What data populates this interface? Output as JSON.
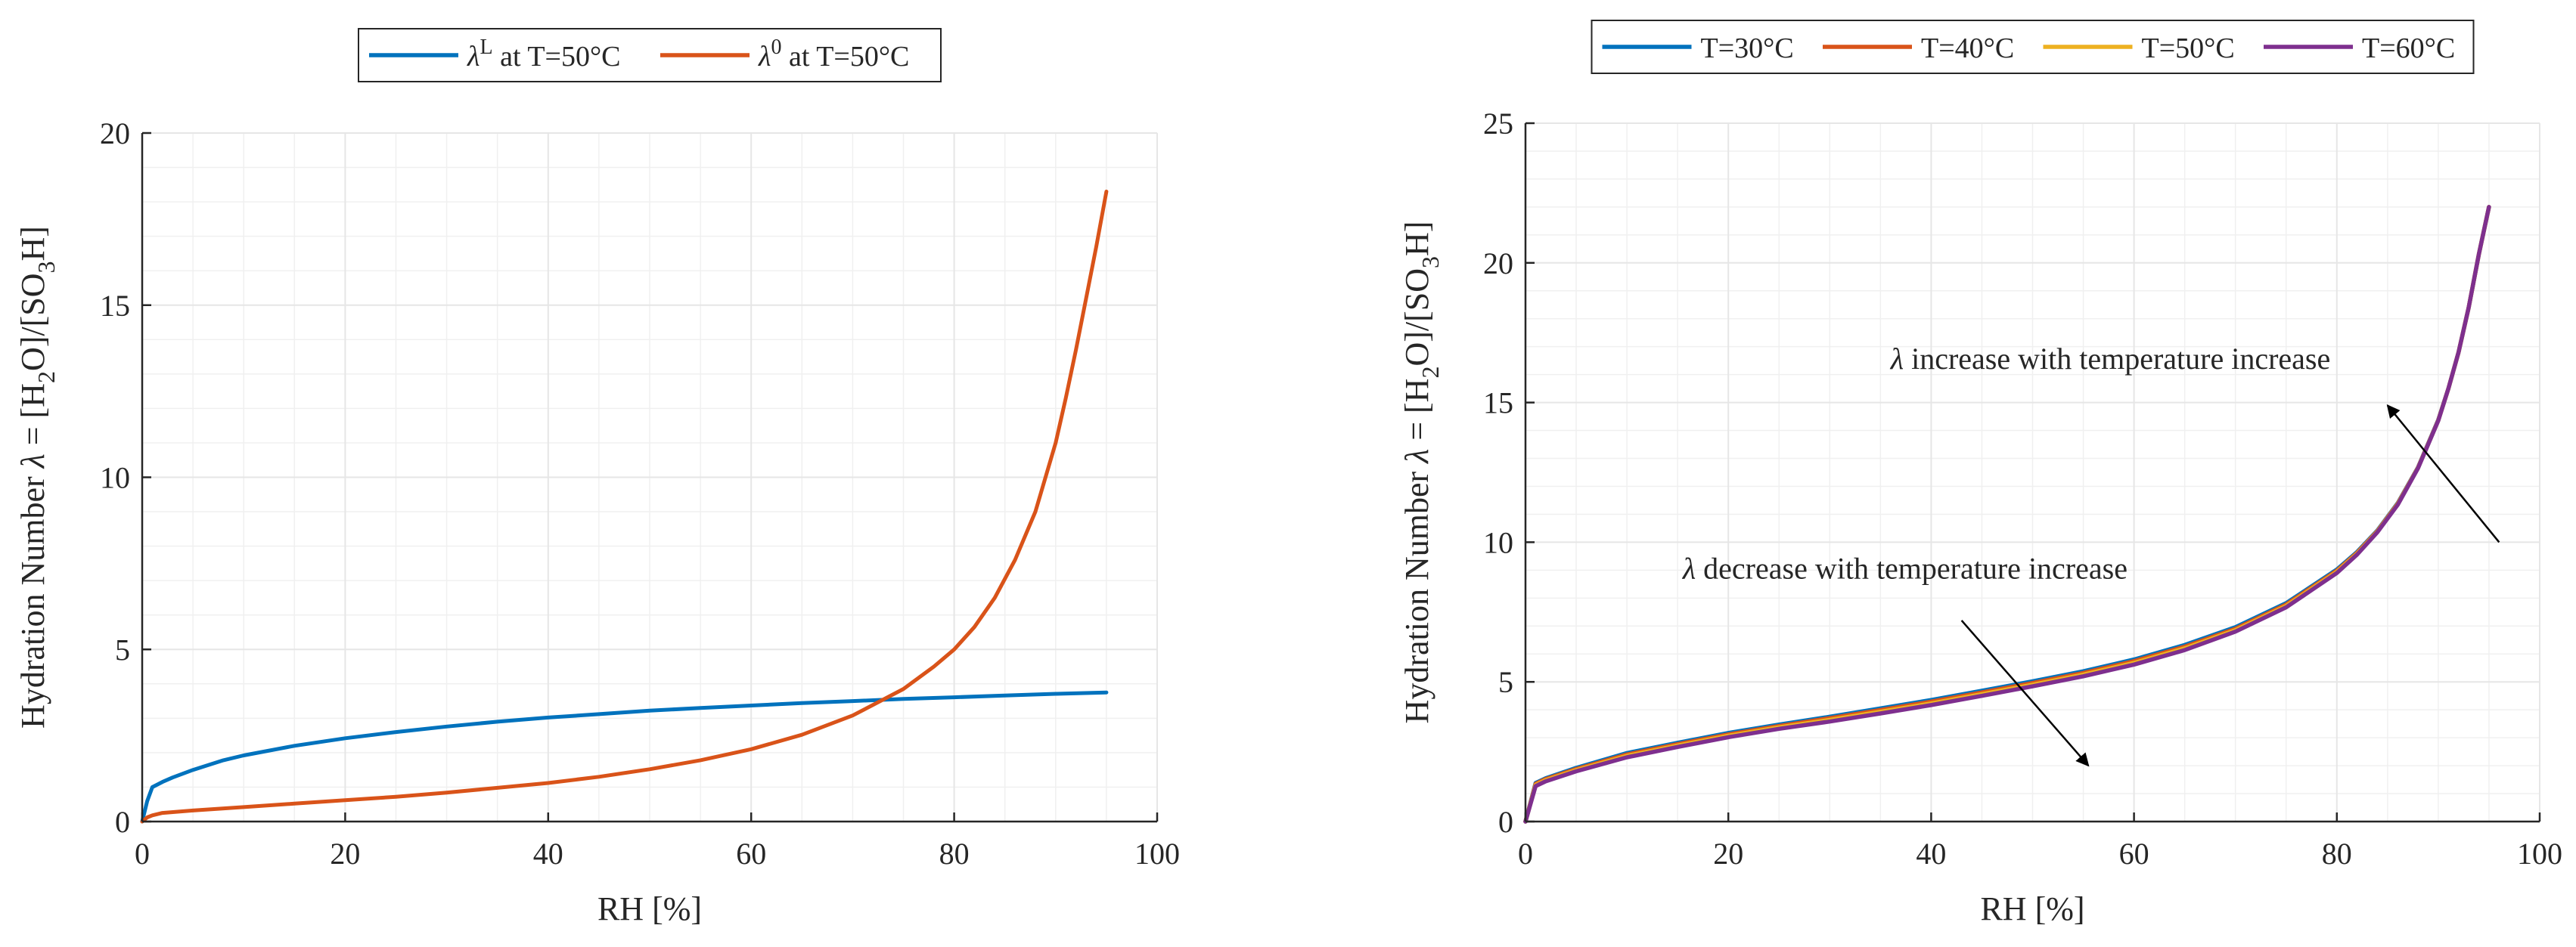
{
  "figure": {
    "background": "#ffffff",
    "grid_color": "#e6e6e6",
    "axis_color": "#262626"
  },
  "chart_data": [
    {
      "type": "line",
      "panel": "left",
      "title": "",
      "xlabel": "RH [%]",
      "ylabel": {
        "prefix": "Hydration Number ",
        "symbol": "λ",
        "eq": " = [H",
        "sub1": "2",
        "mid": "O]/[SO",
        "sub2": "3",
        "suffix": "H]"
      },
      "xlim": [
        0,
        100
      ],
      "ylim": [
        0,
        20
      ],
      "xticks": [
        0,
        20,
        40,
        60,
        80,
        100
      ],
      "yticks": [
        0,
        5,
        10,
        15,
        20
      ],
      "grid": true,
      "minor_grid": true,
      "legend_position": "top-center",
      "series": [
        {
          "name": "λL at T=50°C",
          "legend": {
            "symbol": "λ",
            "sup": "L",
            "rest": " at T=50°C"
          },
          "color": "#0072bd",
          "x": [
            0,
            0.5,
            1,
            2,
            3,
            5,
            8,
            10,
            15,
            20,
            25,
            30,
            35,
            40,
            45,
            50,
            55,
            60,
            65,
            70,
            75,
            80,
            85,
            90,
            95
          ],
          "y": [
            0,
            0.6,
            1.0,
            1.15,
            1.28,
            1.5,
            1.78,
            1.92,
            2.2,
            2.42,
            2.6,
            2.76,
            2.9,
            3.02,
            3.12,
            3.22,
            3.3,
            3.37,
            3.44,
            3.5,
            3.56,
            3.61,
            3.66,
            3.71,
            3.75
          ]
        },
        {
          "name": "λ0 at T=50°C",
          "legend": {
            "symbol": "λ",
            "sup": "0",
            "rest": " at T=50°C"
          },
          "color": "#d95319",
          "x": [
            0,
            0.5,
            1,
            2,
            5,
            10,
            15,
            20,
            25,
            30,
            35,
            40,
            45,
            50,
            55,
            60,
            65,
            70,
            75,
            78,
            80,
            82,
            84,
            86,
            88,
            90,
            91,
            92,
            93,
            94,
            95
          ],
          "y": [
            0,
            0.12,
            0.18,
            0.25,
            0.32,
            0.42,
            0.52,
            0.62,
            0.72,
            0.84,
            0.98,
            1.12,
            1.3,
            1.52,
            1.78,
            2.1,
            2.52,
            3.08,
            3.85,
            4.5,
            5.0,
            5.65,
            6.5,
            7.6,
            9.0,
            11.0,
            12.3,
            13.7,
            15.2,
            16.7,
            18.3
          ]
        }
      ]
    },
    {
      "type": "line",
      "panel": "right",
      "title": "",
      "xlabel": "RH [%]",
      "ylabel": {
        "prefix": "Hydration Number ",
        "symbol": "λ",
        "eq": " = [H",
        "sub1": "2",
        "mid": "O]/[SO",
        "sub2": "3",
        "suffix": "H]"
      },
      "xlim": [
        0,
        100
      ],
      "ylim": [
        0,
        25
      ],
      "xticks": [
        0,
        20,
        40,
        60,
        80,
        100
      ],
      "yticks": [
        0,
        5,
        10,
        15,
        20,
        25
      ],
      "grid": true,
      "minor_grid": true,
      "legend_position": "top-center",
      "series": [
        {
          "name": "T=30°C",
          "color": "#0072bd",
          "x": [
            0,
            1,
            2,
            5,
            10,
            15,
            20,
            25,
            30,
            35,
            40,
            45,
            50,
            55,
            60,
            65,
            70,
            75,
            80,
            82,
            84,
            86,
            88,
            90,
            91,
            92,
            93,
            94,
            95
          ],
          "y": [
            0,
            1.38,
            1.55,
            1.92,
            2.45,
            2.82,
            3.17,
            3.47,
            3.75,
            4.05,
            4.35,
            4.68,
            5.02,
            5.38,
            5.8,
            6.32,
            6.96,
            7.82,
            9.02,
            9.65,
            10.42,
            11.4,
            12.68,
            14.38,
            15.5,
            16.8,
            18.4,
            20.3,
            22.0
          ]
        },
        {
          "name": "T=40°C",
          "color": "#d95319",
          "x": [
            0,
            1,
            2,
            5,
            10,
            15,
            20,
            25,
            30,
            35,
            40,
            45,
            50,
            55,
            60,
            65,
            70,
            75,
            80,
            82,
            84,
            86,
            88,
            90,
            91,
            92,
            93,
            94,
            95
          ],
          "y": [
            0,
            1.35,
            1.52,
            1.88,
            2.4,
            2.77,
            3.12,
            3.42,
            3.7,
            3.99,
            4.29,
            4.62,
            4.96,
            5.32,
            5.74,
            6.26,
            6.9,
            7.77,
            8.98,
            9.62,
            10.4,
            11.38,
            12.67,
            14.37,
            15.5,
            16.8,
            18.4,
            20.3,
            22.0
          ]
        },
        {
          "name": "T=50°C",
          "color": "#edb120",
          "x": [
            0,
            1,
            2,
            5,
            10,
            15,
            20,
            25,
            30,
            35,
            40,
            45,
            50,
            55,
            60,
            65,
            70,
            75,
            80,
            82,
            84,
            86,
            88,
            90,
            91,
            92,
            93,
            94,
            95
          ],
          "y": [
            0,
            1.31,
            1.48,
            1.84,
            2.35,
            2.72,
            3.07,
            3.37,
            3.64,
            3.93,
            4.23,
            4.56,
            4.9,
            5.26,
            5.68,
            6.2,
            6.85,
            7.72,
            8.94,
            9.59,
            10.38,
            11.36,
            12.66,
            14.36,
            15.5,
            16.8,
            18.4,
            20.3,
            22.0
          ]
        },
        {
          "name": "T=60°C",
          "color": "#7e2f8e",
          "x": [
            0,
            1,
            2,
            5,
            10,
            15,
            20,
            25,
            30,
            35,
            40,
            45,
            50,
            55,
            60,
            65,
            70,
            75,
            80,
            82,
            84,
            86,
            88,
            90,
            91,
            92,
            93,
            94,
            95
          ],
          "y": [
            0,
            1.27,
            1.44,
            1.8,
            2.3,
            2.67,
            3.02,
            3.32,
            3.58,
            3.87,
            4.17,
            4.5,
            4.84,
            5.2,
            5.62,
            6.14,
            6.8,
            7.67,
            8.9,
            9.56,
            10.36,
            11.34,
            12.65,
            14.35,
            15.5,
            16.8,
            18.4,
            20.3,
            22.0
          ]
        }
      ],
      "annotations": [
        {
          "symbol": "λ",
          "text": " increase with temperature increase",
          "anchor_data": [
            36,
            16.2
          ],
          "arrow_from": [
            96,
            10
          ],
          "arrow_to": [
            85,
            14.9
          ]
        },
        {
          "symbol": "λ",
          "text": " decrease with temperature increase",
          "anchor_data": [
            15.5,
            8.7
          ],
          "arrow_from": [
            43,
            7.2
          ],
          "arrow_to": [
            55.5,
            2.0
          ]
        }
      ]
    }
  ]
}
